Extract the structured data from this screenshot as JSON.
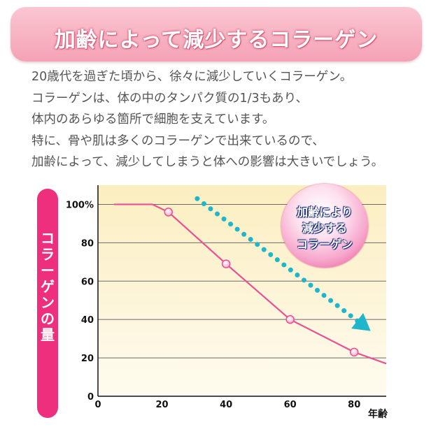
{
  "banner": {
    "title": "加齢によって減少するコラーゲン"
  },
  "description": [
    "20歳代を過ぎた頃から、徐々に減少していくコラーゲン。",
    "コラーゲンは、体の中のタンパク質の1/3もあり、",
    "体内のあらゆる箇所で細胞を支えています。",
    "特に、骨や肌は多くのコラーゲンで出来ているので、",
    "加齢によって、減少してしまうと体への影響は大きいでしょう。"
  ],
  "chart_data": {
    "type": "line",
    "ylabel": "コラーゲンの量",
    "xlabel": "年齢",
    "x_ticks": [
      "0",
      "20",
      "40",
      "60",
      "80"
    ],
    "y_ticks": [
      "0",
      "20",
      "40",
      "60",
      "80",
      "100%"
    ],
    "xlim": [
      0,
      90
    ],
    "ylim": [
      0,
      110
    ],
    "grid": true,
    "series": [
      {
        "x": [
          5,
          17,
          22,
          40,
          60,
          80,
          90
        ],
        "y": [
          100,
          100,
          96,
          69,
          40,
          23,
          17
        ],
        "markers_at_x": [
          22,
          40,
          60,
          80
        ]
      }
    ],
    "annotation": {
      "lines": [
        "加齢により",
        "減少する",
        "コラーゲン"
      ]
    },
    "colors": {
      "line": "#ec4f92",
      "marker": "#f3a5c8",
      "arrow": "#1fb6cc",
      "plot_background_top": "#fbeec0",
      "plot_background_bottom": "#fffbef",
      "axis_pill": "#ee2f7d"
    }
  }
}
